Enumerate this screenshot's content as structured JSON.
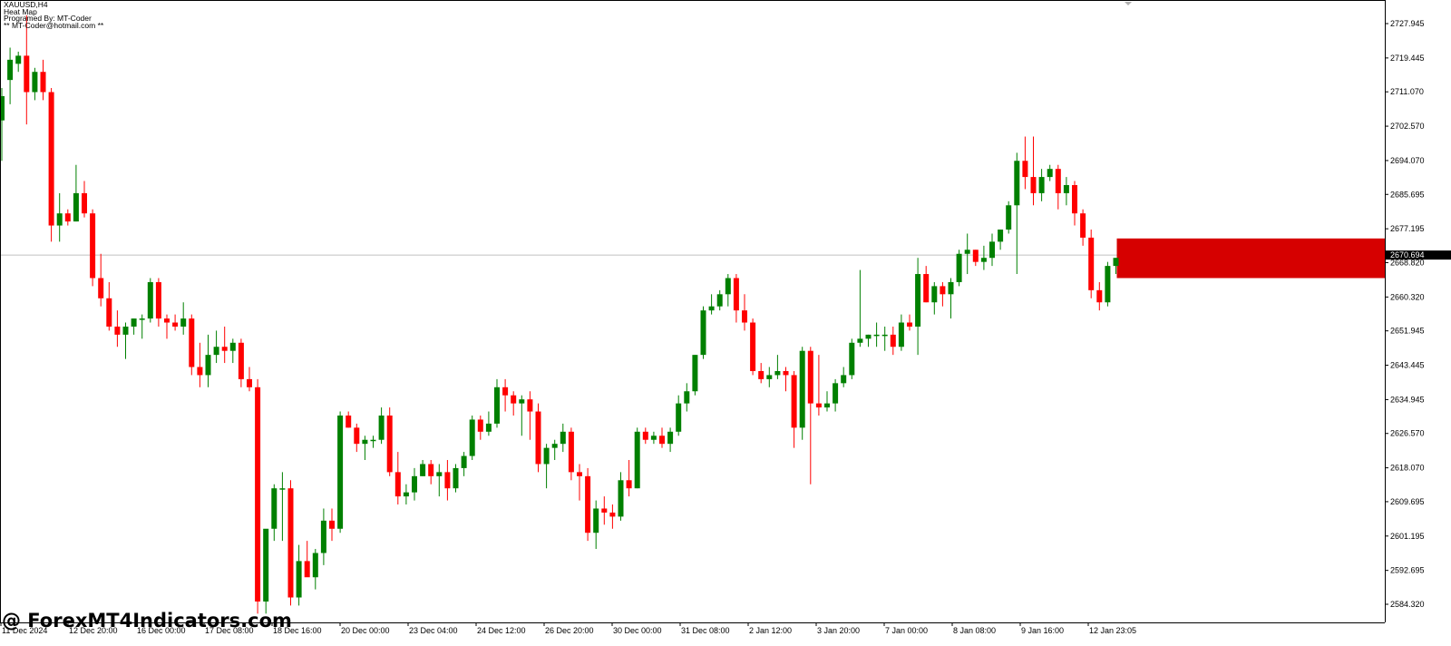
{
  "window": {
    "symbol_line": "XAUUSD,H4",
    "indicator_name": "Heat Map",
    "author_line": "Programed By: MT-Coder",
    "email_line": "** MT-Coder@hotmail.com **"
  },
  "watermark": "@ ForexMT4Indicators.com",
  "current_price_label": "2670.694",
  "colors": {
    "bull": "#008000",
    "bear": "#ff0000",
    "heat_zone": "#d60000",
    "background": "#ffffff",
    "axis": "#000000",
    "price_line": "#c0c0c0",
    "price_tag_bg": "#000000"
  },
  "chart_data": {
    "type": "candlestick",
    "symbol": "XAUUSD",
    "timeframe": "H4",
    "ylim": [
      2581.0,
      2734.0
    ],
    "y_ticks": [
      "2727.945",
      "2719.445",
      "2711.070",
      "2702.570",
      "2694.070",
      "2685.695",
      "2677.195",
      "2668.820",
      "2660.320",
      "2651.945",
      "2643.445",
      "2634.945",
      "2626.570",
      "2618.070",
      "2609.695",
      "2601.195",
      "2592.695",
      "2584.320"
    ],
    "x_ticks": [
      "11 Dec 2024",
      "12 Dec 20:00",
      "16 Dec 00:00",
      "17 Dec 08:00",
      "18 Dec 16:00",
      "20 Dec 00:00",
      "23 Dec 04:00",
      "24 Dec 12:00",
      "26 Dec 20:00",
      "30 Dec 00:00",
      "31 Dec 08:00",
      "2 Jan 12:00",
      "3 Jan 20:00",
      "7 Jan 00:00",
      "8 Jan 08:00",
      "9 Jan 16:00",
      "12 Jan 23:05"
    ],
    "current_price": 2670.694,
    "heat_zone": {
      "low": 2665.0,
      "high": 2674.8
    },
    "ohlc": [
      [
        2704,
        2712,
        2694,
        2710
      ],
      [
        2714,
        2722,
        2708,
        2719
      ],
      [
        2718,
        2721,
        2716,
        2720
      ],
      [
        2720,
        2730,
        2703,
        2711
      ],
      [
        2711,
        2717,
        2709,
        2716
      ],
      [
        2716,
        2719,
        2709,
        2711
      ],
      [
        2711,
        2712,
        2674,
        2678
      ],
      [
        2678,
        2686,
        2674,
        2681
      ],
      [
        2681,
        2682,
        2678,
        2679
      ],
      [
        2679,
        2693,
        2679,
        2686
      ],
      [
        2686,
        2689,
        2680,
        2681
      ],
      [
        2681,
        2682,
        2663,
        2665
      ],
      [
        2665,
        2671,
        2658,
        2660
      ],
      [
        2660,
        2664,
        2652,
        2653
      ],
      [
        2653,
        2657,
        2648,
        2651
      ],
      [
        2651,
        2654,
        2645,
        2653
      ],
      [
        2653,
        2655,
        2651,
        2655
      ],
      [
        2655,
        2656,
        2650,
        2655
      ],
      [
        2655,
        2665,
        2654,
        2664
      ],
      [
        2664,
        2665,
        2653,
        2655
      ],
      [
        2655,
        2656,
        2650,
        2654
      ],
      [
        2654,
        2656,
        2652,
        2653
      ],
      [
        2653,
        2659,
        2651,
        2655
      ],
      [
        2655,
        2656,
        2641,
        2643
      ],
      [
        2643,
        2649,
        2638,
        2641
      ],
      [
        2641,
        2651,
        2638,
        2646
      ],
      [
        2646,
        2652,
        2644,
        2648
      ],
      [
        2648,
        2653,
        2644,
        2647
      ],
      [
        2647,
        2650,
        2644,
        2649
      ],
      [
        2649,
        2650,
        2638,
        2640
      ],
      [
        2640,
        2643,
        2637,
        2638
      ],
      [
        2638,
        2640,
        2582,
        2585
      ],
      [
        2585,
        2602,
        2582,
        2603
      ],
      [
        2603,
        2614,
        2600,
        2613
      ],
      [
        2613,
        2617,
        2600,
        2613
      ],
      [
        2613,
        2615,
        2584,
        2586
      ],
      [
        2586,
        2599,
        2584,
        2595
      ],
      [
        2595,
        2600,
        2592,
        2591
      ],
      [
        2591,
        2598,
        2588,
        2597
      ],
      [
        2597,
        2608,
        2594,
        2605
      ],
      [
        2605,
        2608,
        2600,
        2603
      ],
      [
        2603,
        2632,
        2602,
        2631
      ],
      [
        2631,
        2632,
        2628,
        2628
      ],
      [
        2628,
        2629,
        2622,
        2624
      ],
      [
        2624,
        2626,
        2620,
        2625
      ],
      [
        2625,
        2626,
        2623,
        2625
      ],
      [
        2625,
        2633,
        2624,
        2631
      ],
      [
        2631,
        2633,
        2616,
        2617
      ],
      [
        2617,
        2622,
        2609,
        2611
      ],
      [
        2611,
        2614,
        2609,
        2612
      ],
      [
        2612,
        2618,
        2610,
        2616
      ],
      [
        2616,
        2620,
        2616,
        2619
      ],
      [
        2619,
        2620,
        2614,
        2616
      ],
      [
        2616,
        2619,
        2611,
        2617
      ],
      [
        2617,
        2620,
        2610,
        2613
      ],
      [
        2613,
        2619,
        2612,
        2618
      ],
      [
        2618,
        2622,
        2616,
        2621
      ],
      [
        2621,
        2631,
        2620,
        2630
      ],
      [
        2630,
        2631,
        2625,
        2627
      ],
      [
        2627,
        2632,
        2626,
        2629
      ],
      [
        2629,
        2640,
        2628,
        2638
      ],
      [
        2638,
        2640,
        2632,
        2636
      ],
      [
        2636,
        2637,
        2631,
        2634
      ],
      [
        2634,
        2636,
        2626,
        2635
      ],
      [
        2635,
        2637,
        2625,
        2632
      ],
      [
        2632,
        2634,
        2617,
        2619
      ],
      [
        2619,
        2624,
        2613,
        2623
      ],
      [
        2623,
        2625,
        2620,
        2624
      ],
      [
        2624,
        2629,
        2622,
        2627
      ],
      [
        2627,
        2628,
        2615,
        2617
      ],
      [
        2617,
        2619,
        2610,
        2616
      ],
      [
        2616,
        2618,
        2600,
        2602
      ],
      [
        2602,
        2610,
        2598,
        2608
      ],
      [
        2608,
        2611,
        2604,
        2607
      ],
      [
        2607,
        2609,
        2603,
        2606
      ],
      [
        2606,
        2617,
        2605,
        2615
      ],
      [
        2615,
        2620,
        2611,
        2613
      ],
      [
        2613,
        2628,
        2613,
        2627
      ],
      [
        2627,
        2628,
        2624,
        2625
      ],
      [
        2625,
        2627,
        2624,
        2626
      ],
      [
        2626,
        2628,
        2623,
        2624
      ],
      [
        2624,
        2628,
        2622,
        2627
      ],
      [
        2627,
        2636,
        2626,
        2634
      ],
      [
        2634,
        2639,
        2632,
        2637
      ],
      [
        2637,
        2646,
        2636,
        2646
      ],
      [
        2646,
        2658,
        2645,
        2657
      ],
      [
        2657,
        2661,
        2656,
        2658
      ],
      [
        2658,
        2662,
        2657,
        2661
      ],
      [
        2661,
        2666,
        2658,
        2665
      ],
      [
        2665,
        2666,
        2654,
        2657
      ],
      [
        2657,
        2661,
        2652,
        2654
      ],
      [
        2654,
        2655,
        2641,
        2642
      ],
      [
        2642,
        2644,
        2639,
        2640
      ],
      [
        2640,
        2643,
        2638,
        2641
      ],
      [
        2641,
        2646,
        2640,
        2642
      ],
      [
        2642,
        2643,
        2637,
        2641
      ],
      [
        2641,
        2642,
        2623,
        2628
      ],
      [
        2628,
        2648,
        2625,
        2647
      ],
      [
        2647,
        2648,
        2614,
        2634
      ],
      [
        2634,
        2646,
        2631,
        2633
      ],
      [
        2633,
        2637,
        2632,
        2634
      ],
      [
        2634,
        2640,
        2632,
        2639
      ],
      [
        2639,
        2643,
        2638,
        2641
      ],
      [
        2641,
        2650,
        2640,
        2649
      ],
      [
        2649,
        2667,
        2648,
        2650
      ],
      [
        2650,
        2651,
        2648,
        2651
      ],
      [
        2651,
        2654,
        2648,
        2651
      ],
      [
        2651,
        2653,
        2647,
        2651
      ],
      [
        2651,
        2653,
        2646,
        2648
      ],
      [
        2648,
        2656,
        2647,
        2654
      ],
      [
        2654,
        2656,
        2652,
        2653
      ],
      [
        2653,
        2670,
        2646,
        2666
      ],
      [
        2666,
        2668,
        2659,
        2659
      ],
      [
        2659,
        2664,
        2656,
        2663
      ],
      [
        2663,
        2664,
        2658,
        2661
      ],
      [
        2661,
        2665,
        2655,
        2664
      ],
      [
        2664,
        2672,
        2663,
        2671
      ],
      [
        2671,
        2676,
        2666,
        2672
      ],
      [
        2672,
        2672,
        2668,
        2669
      ],
      [
        2669,
        2673,
        2667,
        2670
      ],
      [
        2670,
        2676,
        2668,
        2674
      ],
      [
        2674,
        2677,
        2672,
        2677
      ],
      [
        2677,
        2684,
        2676,
        2683
      ],
      [
        2683,
        2696,
        2666,
        2694
      ],
      [
        2694,
        2700,
        2687,
        2690
      ],
      [
        2690,
        2700,
        2683,
        2686
      ],
      [
        2686,
        2692,
        2684,
        2690
      ],
      [
        2690,
        2693,
        2689,
        2692
      ],
      [
        2692,
        2693,
        2682,
        2686
      ],
      [
        2686,
        2690,
        2683,
        2688
      ],
      [
        2688,
        2689,
        2678,
        2681
      ],
      [
        2681,
        2682,
        2673,
        2675
      ],
      [
        2675,
        2677,
        2660,
        2662
      ],
      [
        2662,
        2664,
        2657,
        2659
      ],
      [
        2659,
        2669,
        2658,
        2668
      ],
      [
        2668,
        2670,
        2666,
        2670
      ]
    ]
  }
}
